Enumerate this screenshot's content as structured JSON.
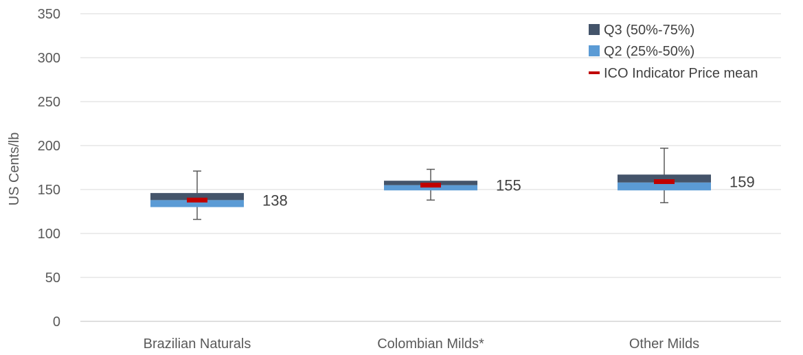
{
  "chart_data": {
    "type": "box",
    "title": "",
    "ylabel": "US Cents/lb",
    "xlabel": "",
    "ylim": [
      0,
      350
    ],
    "yticks": [
      0,
      50,
      100,
      150,
      200,
      250,
      300,
      350
    ],
    "grid": true,
    "legend_position": "top-right",
    "categories": [
      "Brazilian Naturals",
      "Colombian Milds*",
      "Other Milds"
    ],
    "series": [
      {
        "name": "Q3 (50%-75%)",
        "color": "#44546A",
        "role": "q3"
      },
      {
        "name": "Q2 (25%-50%)",
        "color": "#5B9BD5",
        "role": "q2"
      },
      {
        "name": "ICO Indicator Price mean",
        "color": "#C00000",
        "role": "mean"
      }
    ],
    "boxes": [
      {
        "category": "Brazilian Naturals",
        "min": 116,
        "q1": 130,
        "median": 138,
        "q3": 146,
        "max": 171,
        "mean": 138,
        "label": "138"
      },
      {
        "category": "Colombian Milds*",
        "min": 138,
        "q1": 149,
        "median": 155,
        "q3": 160,
        "max": 173,
        "mean": 155,
        "label": "155"
      },
      {
        "category": "Other Milds",
        "min": 135,
        "q1": 149,
        "median": 158,
        "q3": 167,
        "max": 197,
        "mean": 159,
        "label": "159"
      }
    ]
  }
}
